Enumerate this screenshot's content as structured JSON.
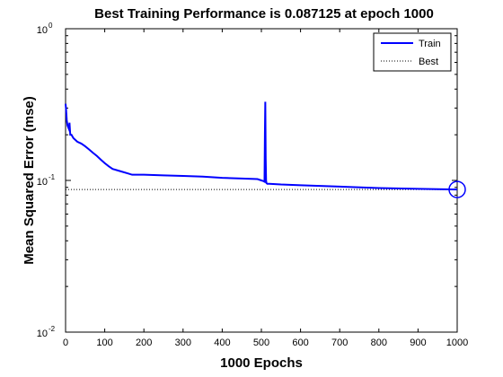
{
  "chart_data": {
    "type": "line",
    "title": "Best Training Performance is 0.087125 at epoch 1000",
    "xlabel": "1000 Epochs",
    "ylabel": "Mean Squared Error  (mse)",
    "xlim": [
      0,
      1000
    ],
    "ylim": [
      0.01,
      1
    ],
    "yscale": "log",
    "x_ticks": [
      "0",
      "100",
      "200",
      "300",
      "400",
      "500",
      "600",
      "700",
      "800",
      "900",
      "1000"
    ],
    "y_ticks": [
      {
        "base": "10",
        "exp": "0",
        "value": 1
      },
      {
        "base": "10",
        "exp": "-1",
        "value": 0.1
      },
      {
        "base": "10",
        "exp": "-2",
        "value": 0.01
      }
    ],
    "grid": false,
    "legend_position": "top-right",
    "series": [
      {
        "name": "Train",
        "color": "#0000ff",
        "style": "solid",
        "x": [
          0,
          1,
          3,
          5,
          8,
          10,
          12,
          15,
          20,
          25,
          30,
          40,
          50,
          60,
          70,
          80,
          90,
          100,
          110,
          120,
          140,
          160,
          170,
          200,
          250,
          300,
          350,
          400,
          450,
          490,
          500,
          505,
          508,
          509,
          510,
          511,
          512,
          513,
          515,
          520,
          550,
          600,
          700,
          800,
          900,
          1000
        ],
        "y": [
          0.32,
          0.3,
          0.25,
          0.23,
          0.22,
          0.24,
          0.2,
          0.2,
          0.19,
          0.185,
          0.18,
          0.175,
          0.168,
          0.16,
          0.152,
          0.145,
          0.137,
          0.13,
          0.124,
          0.119,
          0.115,
          0.111,
          0.109,
          0.109,
          0.108,
          0.107,
          0.106,
          0.104,
          0.103,
          0.102,
          0.1,
          0.099,
          0.098,
          0.2,
          0.33,
          0.14,
          0.1,
          0.096,
          0.095,
          0.095,
          0.094,
          0.093,
          0.091,
          0.089,
          0.088,
          0.087125
        ]
      },
      {
        "name": "Best",
        "color": "#000000",
        "style": "dotted",
        "best_epoch": 1000,
        "best_value": 0.087125
      }
    ]
  }
}
